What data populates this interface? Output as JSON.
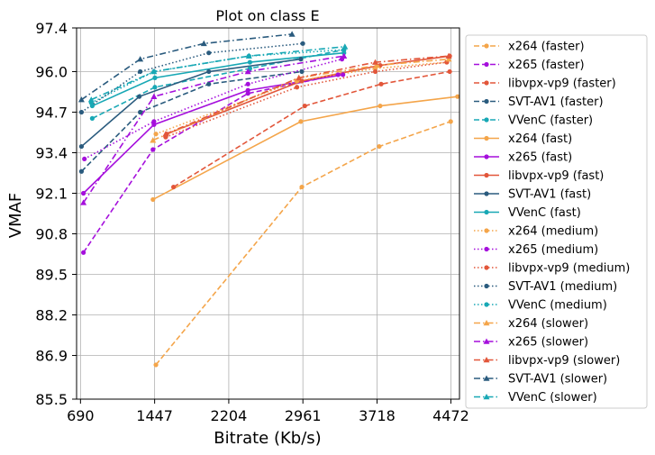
{
  "chart_data": {
    "type": "line",
    "title": "Plot on class E",
    "xlabel": "Bitrate (Kb/s)",
    "ylabel": "VMAF",
    "xlim": [
      650,
      4560
    ],
    "ylim": [
      85.5,
      97.4
    ],
    "xticks": [
      690,
      1447,
      2204,
      2961,
      3718,
      4472
    ],
    "yticks": [
      85.5,
      86.9,
      88.2,
      89.5,
      90.8,
      92.1,
      93.4,
      94.7,
      96.0,
      97.4
    ],
    "xtick_labels": [
      "690",
      "1447",
      "2204",
      "2961",
      "3718",
      "4472"
    ],
    "ytick_labels": [
      "85.5",
      "86.9",
      "88.2",
      "89.5",
      "90.8",
      "92.1",
      "93.4",
      "94.7",
      "96.0",
      "97.4"
    ],
    "grid": true,
    "legend_position": "outside-right",
    "series": [
      {
        "name": "x264 (faster)",
        "color": "#f4a54a",
        "dash": "dashed",
        "marker": "dot",
        "points": [
          [
            1460,
            86.6
          ],
          [
            2950,
            92.3
          ],
          [
            3740,
            93.6
          ],
          [
            4470,
            94.4
          ]
        ]
      },
      {
        "name": "x265 (faster)",
        "color": "#a50fdc",
        "dash": "dashed",
        "marker": "dot",
        "points": [
          [
            720,
            90.2
          ],
          [
            1430,
            93.5
          ],
          [
            2400,
            95.3
          ],
          [
            3320,
            95.9
          ]
        ]
      },
      {
        "name": "libvpx-vp9 (faster)",
        "color": "#e2563a",
        "dash": "dashed",
        "marker": "dot",
        "points": [
          [
            1640,
            92.3
          ],
          [
            2980,
            94.9
          ],
          [
            3760,
            95.6
          ],
          [
            4460,
            96.0
          ]
        ]
      },
      {
        "name": "SVT-AV1 (faster)",
        "color": "#2a5b7e",
        "dash": "dashed",
        "marker": "dot",
        "points": [
          [
            700,
            92.8
          ],
          [
            1300,
            94.7
          ],
          [
            2000,
            95.6
          ],
          [
            2950,
            96.0
          ]
        ]
      },
      {
        "name": "VVenC (faster)",
        "color": "#18a8b5",
        "dash": "dashed",
        "marker": "dot",
        "points": [
          [
            810,
            94.5
          ],
          [
            1450,
            95.5
          ],
          [
            2420,
            96.1
          ],
          [
            3380,
            96.7
          ]
        ]
      },
      {
        "name": "x264 (fast)",
        "color": "#f4a54a",
        "dash": "solid",
        "marker": "dot",
        "points": [
          [
            1430,
            91.9
          ],
          [
            2940,
            94.4
          ],
          [
            3750,
            94.9
          ],
          [
            4540,
            95.2
          ]
        ]
      },
      {
        "name": "x265 (fast)",
        "color": "#a50fdc",
        "dash": "solid",
        "marker": "dot",
        "points": [
          [
            720,
            92.1
          ],
          [
            1440,
            94.3
          ],
          [
            2400,
            95.4
          ],
          [
            3370,
            95.9
          ]
        ]
      },
      {
        "name": "libvpx-vp9 (fast)",
        "color": "#e2563a",
        "dash": "solid",
        "marker": "dot",
        "points": [
          [
            1570,
            94.0
          ],
          [
            2950,
            95.7
          ],
          [
            3750,
            96.2
          ],
          [
            4460,
            96.5
          ]
        ]
      },
      {
        "name": "SVT-AV1 (fast)",
        "color": "#2a5b7e",
        "dash": "solid",
        "marker": "dot",
        "points": [
          [
            700,
            93.6
          ],
          [
            1290,
            95.2
          ],
          [
            2000,
            96.0
          ],
          [
            2940,
            96.4
          ]
        ]
      },
      {
        "name": "VVenC (fast)",
        "color": "#18a8b5",
        "dash": "solid",
        "marker": "dot",
        "points": [
          [
            810,
            94.9
          ],
          [
            1450,
            95.8
          ],
          [
            2420,
            96.3
          ],
          [
            3380,
            96.6
          ]
        ]
      },
      {
        "name": "x264 (medium)",
        "color": "#f4a54a",
        "dash": "dotted",
        "marker": "dot",
        "points": [
          [
            1460,
            94.0
          ],
          [
            2900,
            95.7
          ],
          [
            3700,
            96.1
          ],
          [
            4430,
            96.3
          ]
        ]
      },
      {
        "name": "x265 (medium)",
        "color": "#a50fdc",
        "dash": "dotted",
        "marker": "dot",
        "points": [
          [
            730,
            93.2
          ],
          [
            1440,
            94.4
          ],
          [
            2400,
            95.6
          ],
          [
            3360,
            96.4
          ]
        ]
      },
      {
        "name": "libvpx-vp9 (medium)",
        "color": "#e2563a",
        "dash": "dotted",
        "marker": "dot",
        "points": [
          [
            1560,
            93.9
          ],
          [
            2900,
            95.5
          ],
          [
            3700,
            96.0
          ],
          [
            4430,
            96.3
          ]
        ]
      },
      {
        "name": "SVT-AV1 (medium)",
        "color": "#2a5b7e",
        "dash": "dotted",
        "marker": "dot",
        "points": [
          [
            700,
            94.7
          ],
          [
            1300,
            96.0
          ],
          [
            2000,
            96.6
          ],
          [
            2960,
            96.9
          ]
        ]
      },
      {
        "name": "VVenC (medium)",
        "color": "#18a8b5",
        "dash": "dotted",
        "marker": "dot",
        "points": [
          [
            800,
            95.0
          ],
          [
            1440,
            96.0
          ],
          [
            2410,
            96.5
          ],
          [
            3380,
            96.7
          ]
        ]
      },
      {
        "name": "x264 (slower)",
        "color": "#f4a54a",
        "dash": "dashdot",
        "marker": "triangle",
        "points": [
          [
            1430,
            93.8
          ],
          [
            2920,
            95.8
          ],
          [
            3720,
            96.2
          ],
          [
            4450,
            96.4
          ]
        ]
      },
      {
        "name": "x265 (slower)",
        "color": "#a50fdc",
        "dash": "dashdot",
        "marker": "triangle",
        "points": [
          [
            720,
            91.8
          ],
          [
            1440,
            95.2
          ],
          [
            2400,
            96.0
          ],
          [
            3380,
            96.5
          ]
        ]
      },
      {
        "name": "libvpx-vp9 (slower)",
        "color": "#e2563a",
        "dash": "dashdot",
        "marker": "triangle",
        "points": [
          [
            1560,
            94.0
          ],
          [
            2920,
            95.8
          ],
          [
            3700,
            96.3
          ],
          [
            4450,
            96.5
          ]
        ]
      },
      {
        "name": "SVT-AV1 (slower)",
        "color": "#2a5b7e",
        "dash": "dashdot",
        "marker": "triangle",
        "points": [
          [
            700,
            95.1
          ],
          [
            1300,
            96.4
          ],
          [
            1950,
            96.9
          ],
          [
            2850,
            97.2
          ]
        ]
      },
      {
        "name": "VVenC (slower)",
        "color": "#18a8b5",
        "dash": "dashdot",
        "marker": "triangle",
        "points": [
          [
            800,
            95.1
          ],
          [
            1440,
            96.0
          ],
          [
            2410,
            96.5
          ],
          [
            3390,
            96.8
          ]
        ]
      }
    ]
  }
}
